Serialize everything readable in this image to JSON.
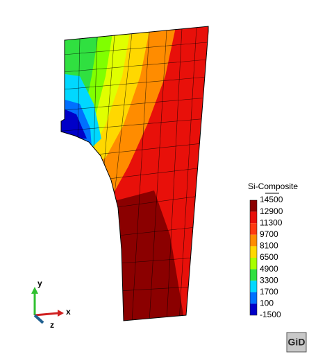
{
  "legend": {
    "title": "Si-Composite",
    "labels": [
      14500,
      12900,
      11300,
      9700,
      8100,
      6500,
      4900,
      3300,
      1700,
      100,
      -1500
    ],
    "colors": [
      "#8b0000",
      "#e8100a",
      "#ff3a10",
      "#ff8c00",
      "#ffd800",
      "#a8ff00",
      "#30e040",
      "#00d8ff",
      "#0070ff",
      "#0000c8"
    ]
  },
  "axes": {
    "x": "x",
    "y": "y",
    "z": "z"
  },
  "logo": "GiD"
}
